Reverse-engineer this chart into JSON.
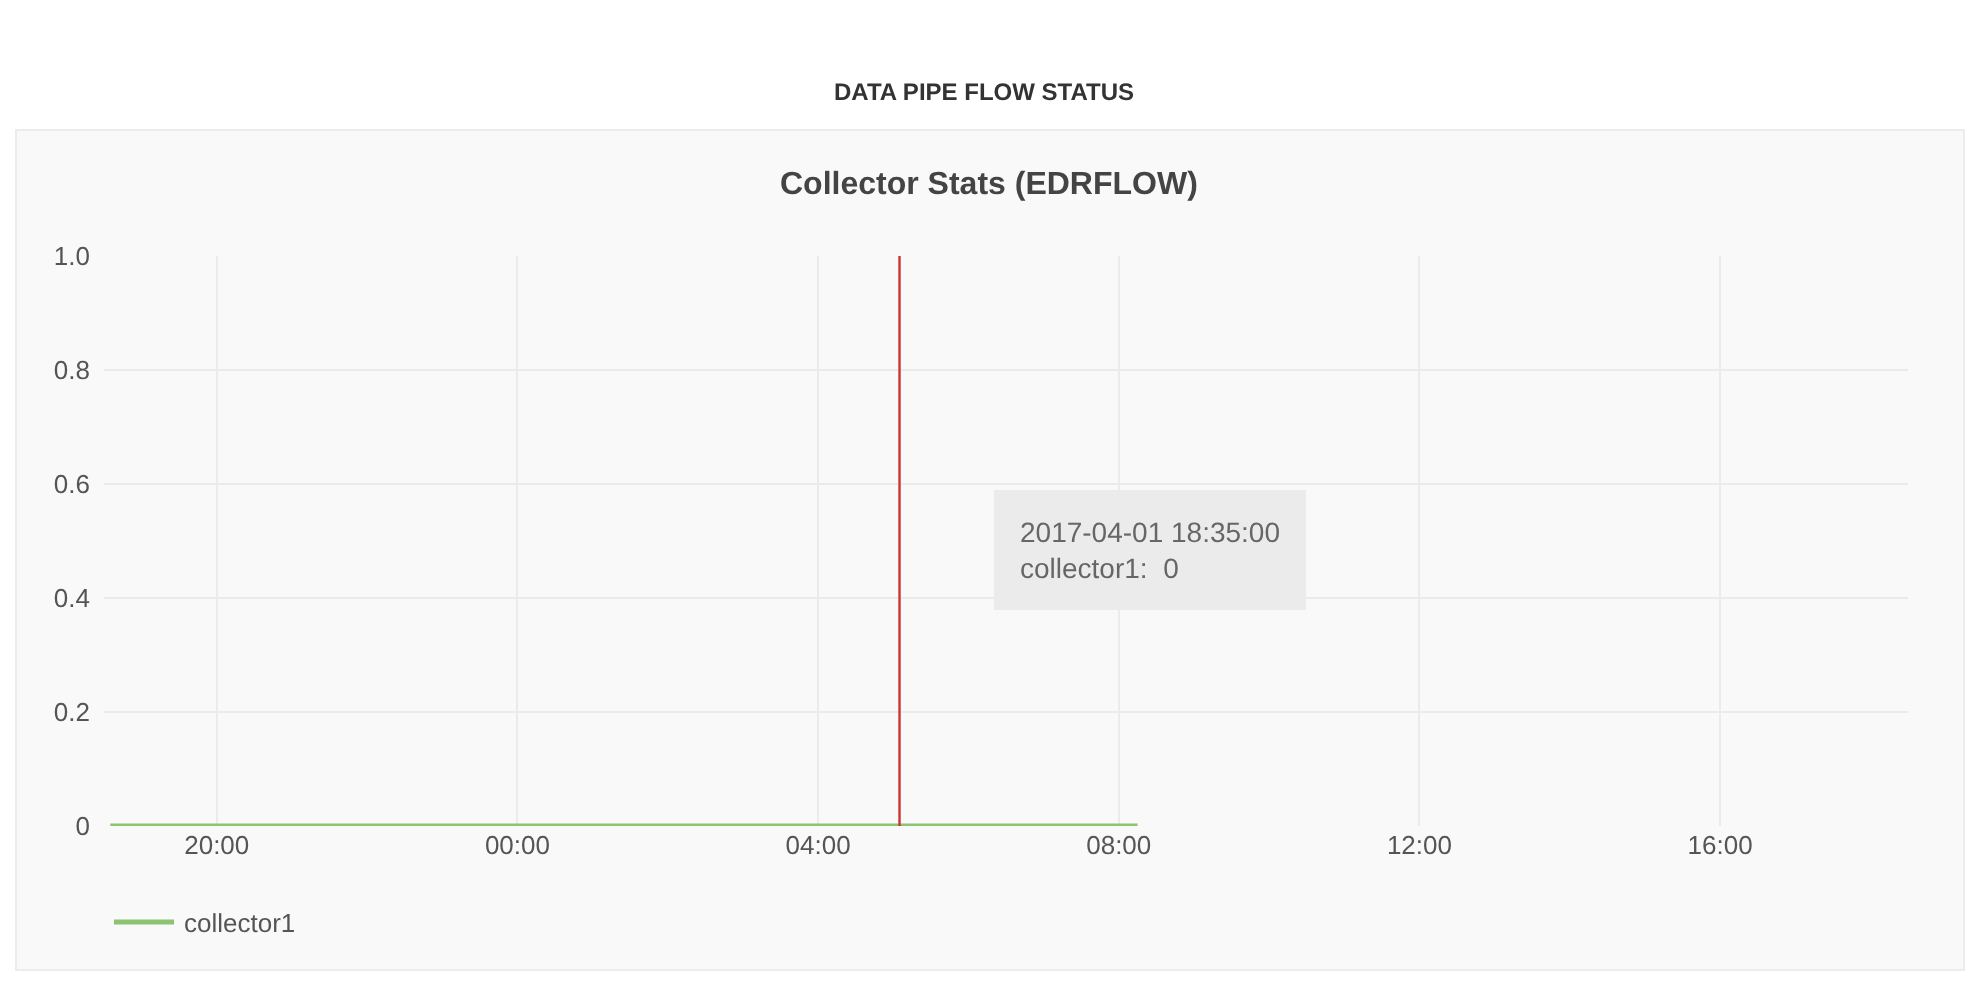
{
  "chart_data": {
    "type": "line",
    "title": "DATA PIPE FLOW STATUS",
    "subtitle": "Collector Stats (EDRFLOW)",
    "x": [
      "2017-04-01T18:35",
      "2017-04-02T08:15"
    ],
    "series": [
      {
        "name": "collector1",
        "color": "#8cc474",
        "values": [
          0,
          0
        ]
      }
    ],
    "xlim": [
      "2017-04-01T18:30",
      "2017-04-02T18:30"
    ],
    "xticks": [
      {
        "value": "2017-04-01T20:00",
        "label": "20:00"
      },
      {
        "value": "2017-04-02T00:00",
        "label": "00:00"
      },
      {
        "value": "2017-04-02T04:00",
        "label": "04:00"
      },
      {
        "value": "2017-04-02T08:00",
        "label": "08:00"
      },
      {
        "value": "2017-04-02T12:00",
        "label": "12:00"
      },
      {
        "value": "2017-04-02T16:00",
        "label": "16:00"
      }
    ],
    "ylim": [
      0,
      1
    ],
    "yticks": [
      0,
      0.2,
      0.4,
      0.6,
      0.8,
      {
        "value": 1,
        "label": "1.0"
      }
    ],
    "annotations": [
      "2017-04-01 18:35:00\ncollector1:  0"
    ],
    "ref_lines": [
      {
        "axis": "x",
        "value": "2017-04-02T05:05",
        "color": "#cc3333"
      }
    ],
    "grid": true,
    "legend": "bottom left"
  }
}
